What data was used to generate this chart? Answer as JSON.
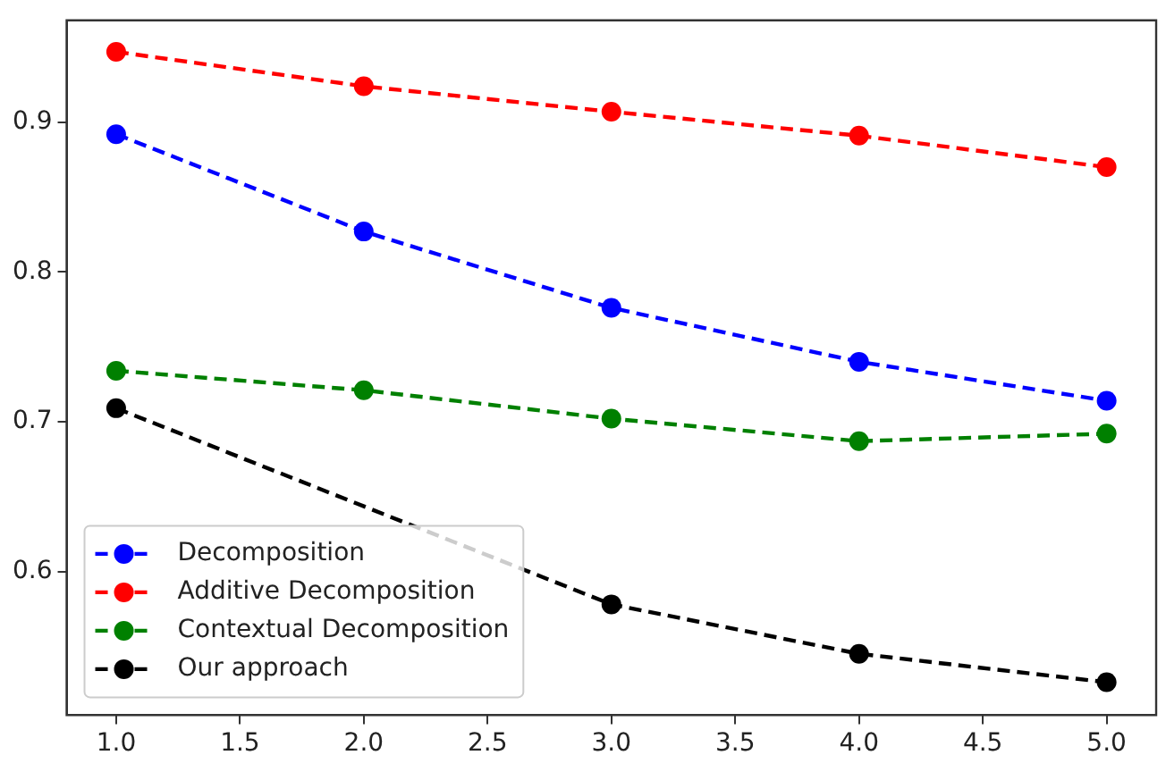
{
  "chart_data": {
    "type": "line",
    "x": [
      1,
      2,
      3,
      4,
      5
    ],
    "series": [
      {
        "name": "Decomposition",
        "color": "#0000ff",
        "values": [
          0.892,
          0.827,
          0.776,
          0.74,
          0.714
        ]
      },
      {
        "name": "Additive Decomposition",
        "color": "#ff0000",
        "values": [
          0.947,
          0.924,
          0.907,
          0.891,
          0.87
        ]
      },
      {
        "name": "Contextual Decomposition",
        "color": "#008000",
        "values": [
          0.734,
          0.721,
          0.702,
          0.687,
          0.692
        ]
      },
      {
        "name": "Our approach",
        "color": "#000000",
        "values": [
          0.709,
          null,
          0.578,
          0.545,
          0.526
        ]
      }
    ],
    "xlim": [
      0.8,
      5.2
    ],
    "xticks": [
      {
        "value": 1,
        "label": "1.0"
      },
      {
        "value": 1.5,
        "label": "1.5"
      },
      {
        "value": 2,
        "label": "2.0"
      },
      {
        "value": 2.5,
        "label": "2.5"
      },
      {
        "value": 3,
        "label": "3.0"
      },
      {
        "value": 3.5,
        "label": "3.5"
      },
      {
        "value": 4,
        "label": "4.0"
      },
      {
        "value": 4.5,
        "label": "4.5"
      },
      {
        "value": 5,
        "label": "5.0"
      }
    ],
    "ylim": [
      0.504,
      0.968
    ],
    "yticks": [
      0.6,
      0.7,
      0.8,
      0.9
    ],
    "grid": false,
    "legend": "bottom left",
    "marker": "circle",
    "line_style": "dashed"
  }
}
